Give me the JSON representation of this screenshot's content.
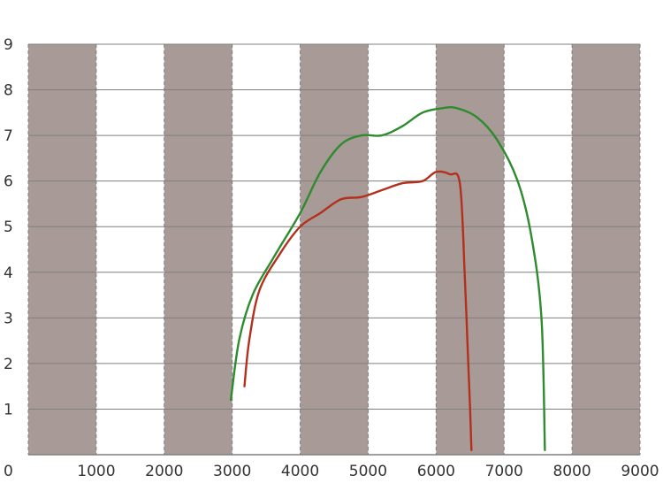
{
  "chart_data": {
    "type": "line",
    "title": "",
    "xlabel": "",
    "ylabel": "",
    "xlim": [
      0,
      9000
    ],
    "ylim": [
      0,
      9
    ],
    "x_ticks": [
      "0",
      "1000",
      "2000",
      "3000",
      "4000",
      "5000",
      "6000",
      "7000",
      "8000",
      "9000"
    ],
    "y_ticks": [
      "1",
      "2",
      "3",
      "4",
      "5",
      "6",
      "7",
      "8",
      "9"
    ],
    "grid": true,
    "legend": "none",
    "background_bands": {
      "pattern": "alternating shaded columns every 1000",
      "shaded_intervals": [
        [
          0,
          1000
        ],
        [
          2000,
          3000
        ],
        [
          4000,
          5000
        ],
        [
          6000,
          7000
        ],
        [
          8000,
          9000
        ]
      ],
      "shaded_color": "#a89a96",
      "unshaded_color": "#ffffff"
    },
    "colors": {
      "grid": "#7f7f7f",
      "green": "#2e8b2e",
      "red": "#b2301c"
    },
    "series": [
      {
        "color": "#2e8b2e",
        "x": [
          2980,
          3100,
          3300,
          3600,
          4000,
          4300,
          4600,
          4900,
          5200,
          5500,
          5800,
          6100,
          6300,
          6600,
          6900,
          7200,
          7400,
          7550,
          7600
        ],
        "y": [
          1.2,
          2.5,
          3.5,
          4.3,
          5.3,
          6.2,
          6.8,
          7.0,
          7.0,
          7.2,
          7.5,
          7.6,
          7.6,
          7.4,
          6.9,
          6.0,
          4.8,
          3.0,
          0.1
        ]
      },
      {
        "color": "#b2301c",
        "x": [
          3180,
          3250,
          3400,
          3700,
          4000,
          4300,
          4600,
          4900,
          5200,
          5500,
          5800,
          6000,
          6200,
          6350,
          6420,
          6460,
          6500,
          6520
        ],
        "y": [
          1.5,
          2.5,
          3.6,
          4.4,
          5.0,
          5.3,
          5.6,
          5.65,
          5.8,
          5.95,
          6.0,
          6.2,
          6.15,
          5.95,
          4.0,
          2.5,
          1.0,
          0.1
        ]
      }
    ]
  }
}
